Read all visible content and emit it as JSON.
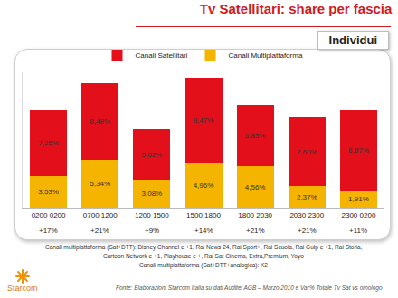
{
  "chart_data": {
    "type": "bar",
    "title": "Tv Satellitari: share per fascia",
    "subtitle": "Individui",
    "categories": [
      "0200 0200",
      "0700 1200",
      "1200 1500",
      "1500 1800",
      "1800 2030",
      "2030 2300",
      "2300 0200"
    ],
    "series": [
      {
        "name": "Canali Multipiattaforma",
        "color": "#f5b400",
        "values": [
          3.53,
          5.34,
          3.08,
          4.96,
          4.56,
          2.37,
          1.91
        ],
        "value_labels": [
          "3,53%",
          "5,34%",
          "3,08%",
          "4,96%",
          "4,56%",
          "2,37%",
          "1,91%"
        ]
      },
      {
        "name": "Canali Satellitari",
        "color": "#e3101b",
        "values": [
          7.25,
          8.48,
          5.62,
          9.47,
          6.83,
          7.6,
          8.87
        ],
        "value_labels": [
          "7,25%",
          "8,48%",
          "5,62%",
          "9,47%",
          "6,83%",
          "7,60%",
          "8,87%"
        ]
      }
    ],
    "annotations": [
      "+17%",
      "+21%",
      "+9%",
      "+14%",
      "+21%",
      "+21%",
      "+11%"
    ],
    "notes": [
      "Canali multipiattaforma (Sat+DTT): Disney Channel e +1, Rai News 24, Rai Sport+, Rai Scuola, Rai Gulp e +1, Rai Storia,",
      "Cartoon Network e +1, Playhouse e +, Rai Sat Cinema, Extra,Premium, Yoyo",
      "Canali multipiattaforma (Sat+DTT+analogica): K2"
    ],
    "source": "Fonte: Elaborazioni Starcom Italia su dati Auditel AGB – Marzo 2010 e Var% Totale Tv Sat vs omologo",
    "logo": "Starcom",
    "stacked": true,
    "data_labels": true,
    "legend": "top",
    "tick_labels": "x",
    "grid": false,
    "ylim": [
      0,
      15
    ]
  }
}
